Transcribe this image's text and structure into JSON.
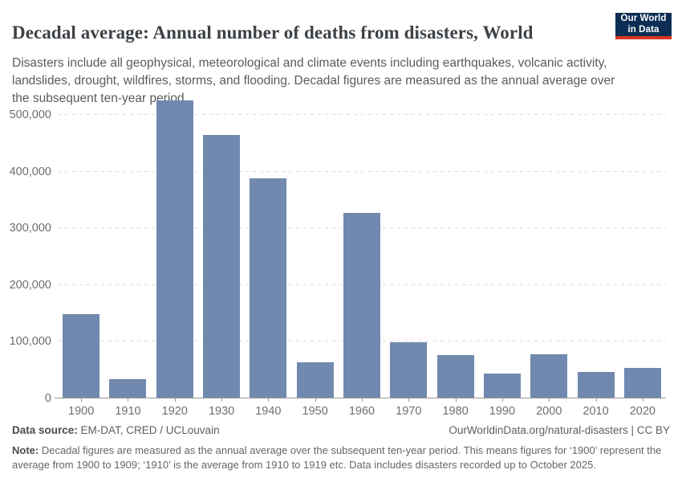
{
  "header": {
    "title": "Decadal average: Annual number of deaths from disasters, World",
    "subtitle": "Disasters include all geophysical, meteorological and climate events including earthquakes, volcanic activity, landslides, drought, wildfires, storms, and flooding. Decadal figures are measured as the annual average over the subsequent ten-year period.",
    "logo": {
      "line1": "Our World",
      "line2": "in Data"
    }
  },
  "chart_data": {
    "type": "bar",
    "title": "Decadal average: Annual number of deaths from disasters, World",
    "categories": [
      "1900",
      "1910",
      "1920",
      "1930",
      "1940",
      "1950",
      "1960",
      "1970",
      "1980",
      "1990",
      "2000",
      "2010",
      "2020"
    ],
    "values": [
      147000,
      33000,
      524000,
      463000,
      387000,
      62000,
      326000,
      98000,
      75000,
      42000,
      77000,
      45000,
      53000
    ],
    "xlabel": "",
    "ylabel": "",
    "ylim": [
      0,
      500000
    ],
    "yticks": [
      0,
      100000,
      200000,
      300000,
      400000,
      500000
    ],
    "ytick_labels": [
      "0",
      "100,000",
      "200,000",
      "300,000",
      "400,000",
      "500,000"
    ],
    "grid": "horizontal-dashed",
    "legend": "none",
    "bar_color": "#7189ae"
  },
  "footer": {
    "source_label": "Data source:",
    "source_text": " EM-DAT, CRED / UCLouvain",
    "link": "OurWorldinData.org/natural-disasters | CC BY",
    "note_label": "Note:",
    "note_text": " Decadal figures are measured as the annual average over the subsequent ten-year period. This means figures for ‘1900’ represent the average from 1900 to 1909; ‘1910’ is the average from 1910 to 1919 etc. Data includes disasters recorded up to October 2025."
  },
  "colors": {
    "bar": "#7189ae",
    "logo_navy": "#0d2e54",
    "logo_red": "#dc3426",
    "gridline": "#dcdcdc",
    "axis_line": "#9a9a9a",
    "axis_text": "#6e6e6e",
    "title_text": "#3d4247",
    "subtitle_text": "#5b5b5b"
  }
}
